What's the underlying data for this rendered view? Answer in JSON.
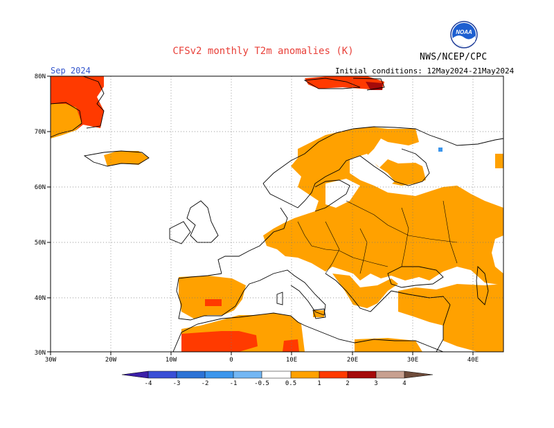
{
  "header": {
    "title": "CFSv2 monthly T2m anomalies (K)",
    "agency": "NWS/NCEP/CPC",
    "logo_text": "NOAA",
    "valid_month": "Sep 2024",
    "initial_conditions": "Initial conditions: 12May2024-21May2024"
  },
  "map": {
    "region": "Europe / North Atlantic / North Africa",
    "lon_range": [
      -30,
      45
    ],
    "lat_range": [
      30,
      80
    ],
    "lon_ticks": [
      "30W",
      "20W",
      "10W",
      "0",
      "10E",
      "20E",
      "30E",
      "40E"
    ],
    "lat_ticks": [
      "30N",
      "40N",
      "50N",
      "60N",
      "70N",
      "80N"
    ],
    "gridlines": "dotted",
    "anomaly_areas": [
      {
        "area": "southern Greenland",
        "class": "+1 to +2 K with patches +0.5 to +1 K"
      },
      {
        "area": "Svalbard",
        "class": "+1 to +3 K"
      },
      {
        "area": "Iceland",
        "class": "+0.5 to +1 K"
      },
      {
        "area": "Scandinavia, central and eastern Europe",
        "class": "+0.5 to +1 K"
      },
      {
        "area": "Iberia, Turkey, Middle East",
        "class": "+0.5 to +1 K"
      },
      {
        "area": "Northwest Africa",
        "class": "+1 to +2 K"
      },
      {
        "area": "Kola Peninsula (small patch)",
        "class": "-1 to -0.5 K"
      }
    ]
  },
  "colorbar": {
    "labels": [
      "-4",
      "-3",
      "-2",
      "-1",
      "-0.5",
      "0.5",
      "1",
      "2",
      "3",
      "4"
    ],
    "colors": [
      "#3b1fa8",
      "#3a4fd6",
      "#2d73d6",
      "#3c96ec",
      "#73b7f4",
      "#ffffff",
      "#ffa100",
      "#ff3a00",
      "#a50a0a",
      "#c8a090",
      "#6e4b3a"
    ]
  }
}
